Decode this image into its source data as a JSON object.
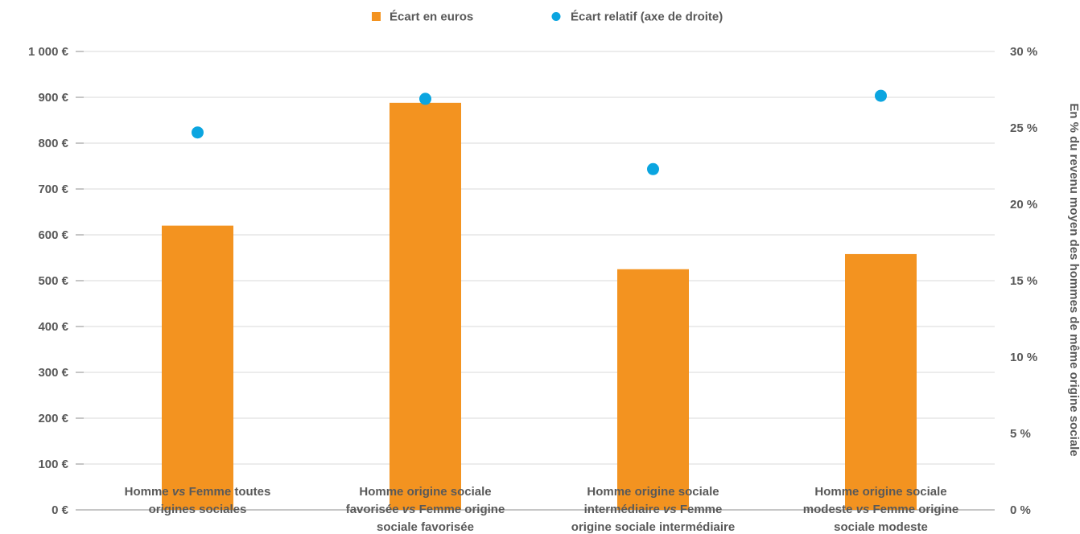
{
  "chart_data": {
    "type": "bar",
    "categories": [
      [
        [
          "Homme ",
          "vs",
          " Femme toutes"
        ],
        [
          "origines sociales"
        ]
      ],
      [
        [
          "Homme origine sociale"
        ],
        [
          "favorisée ",
          "vs",
          " Femme origine"
        ],
        [
          "sociale favorisée"
        ]
      ],
      [
        [
          "Homme origine sociale"
        ],
        [
          "intermédiaire ",
          "vs",
          " Femme"
        ],
        [
          "origine sociale intermédiaire"
        ]
      ],
      [
        [
          "Homme origine sociale"
        ],
        [
          "modeste ",
          "vs",
          " Femme origine"
        ],
        [
          "sociale modeste"
        ]
      ]
    ],
    "series": [
      {
        "name": "Écart en euros",
        "type": "bar",
        "axis": "left",
        "color": "#F39320",
        "values": [
          620,
          888,
          525,
          558
        ]
      },
      {
        "name": "Écart relatif (axe de droite)",
        "type": "scatter",
        "axis": "right",
        "color": "#0BA5E0",
        "values": [
          24.7,
          26.9,
          22.3,
          27.1
        ]
      }
    ],
    "y_left": {
      "ylim": [
        0,
        1000
      ],
      "ticks": [
        0,
        100,
        200,
        300,
        400,
        500,
        600,
        700,
        800,
        900,
        1000
      ],
      "tick_labels": [
        "0 €",
        "100 €",
        "200 €",
        "300 €",
        "400 €",
        "500 €",
        "600 €",
        "700 €",
        "800 €",
        "900 €",
        "1 000 €"
      ]
    },
    "y_right": {
      "ylim": [
        0,
        30
      ],
      "ticks": [
        0,
        5,
        10,
        15,
        20,
        25,
        30
      ],
      "tick_labels": [
        "0 %",
        "5 %",
        "10 %",
        "15 %",
        "20 %",
        "25 %",
        "30 %"
      ],
      "label": "En % du revenu moyen des hommes de même origine sociale"
    },
    "legend_position": "top",
    "grid": true,
    "grid_color": "#D9D9D9",
    "text_color": "#595959"
  }
}
